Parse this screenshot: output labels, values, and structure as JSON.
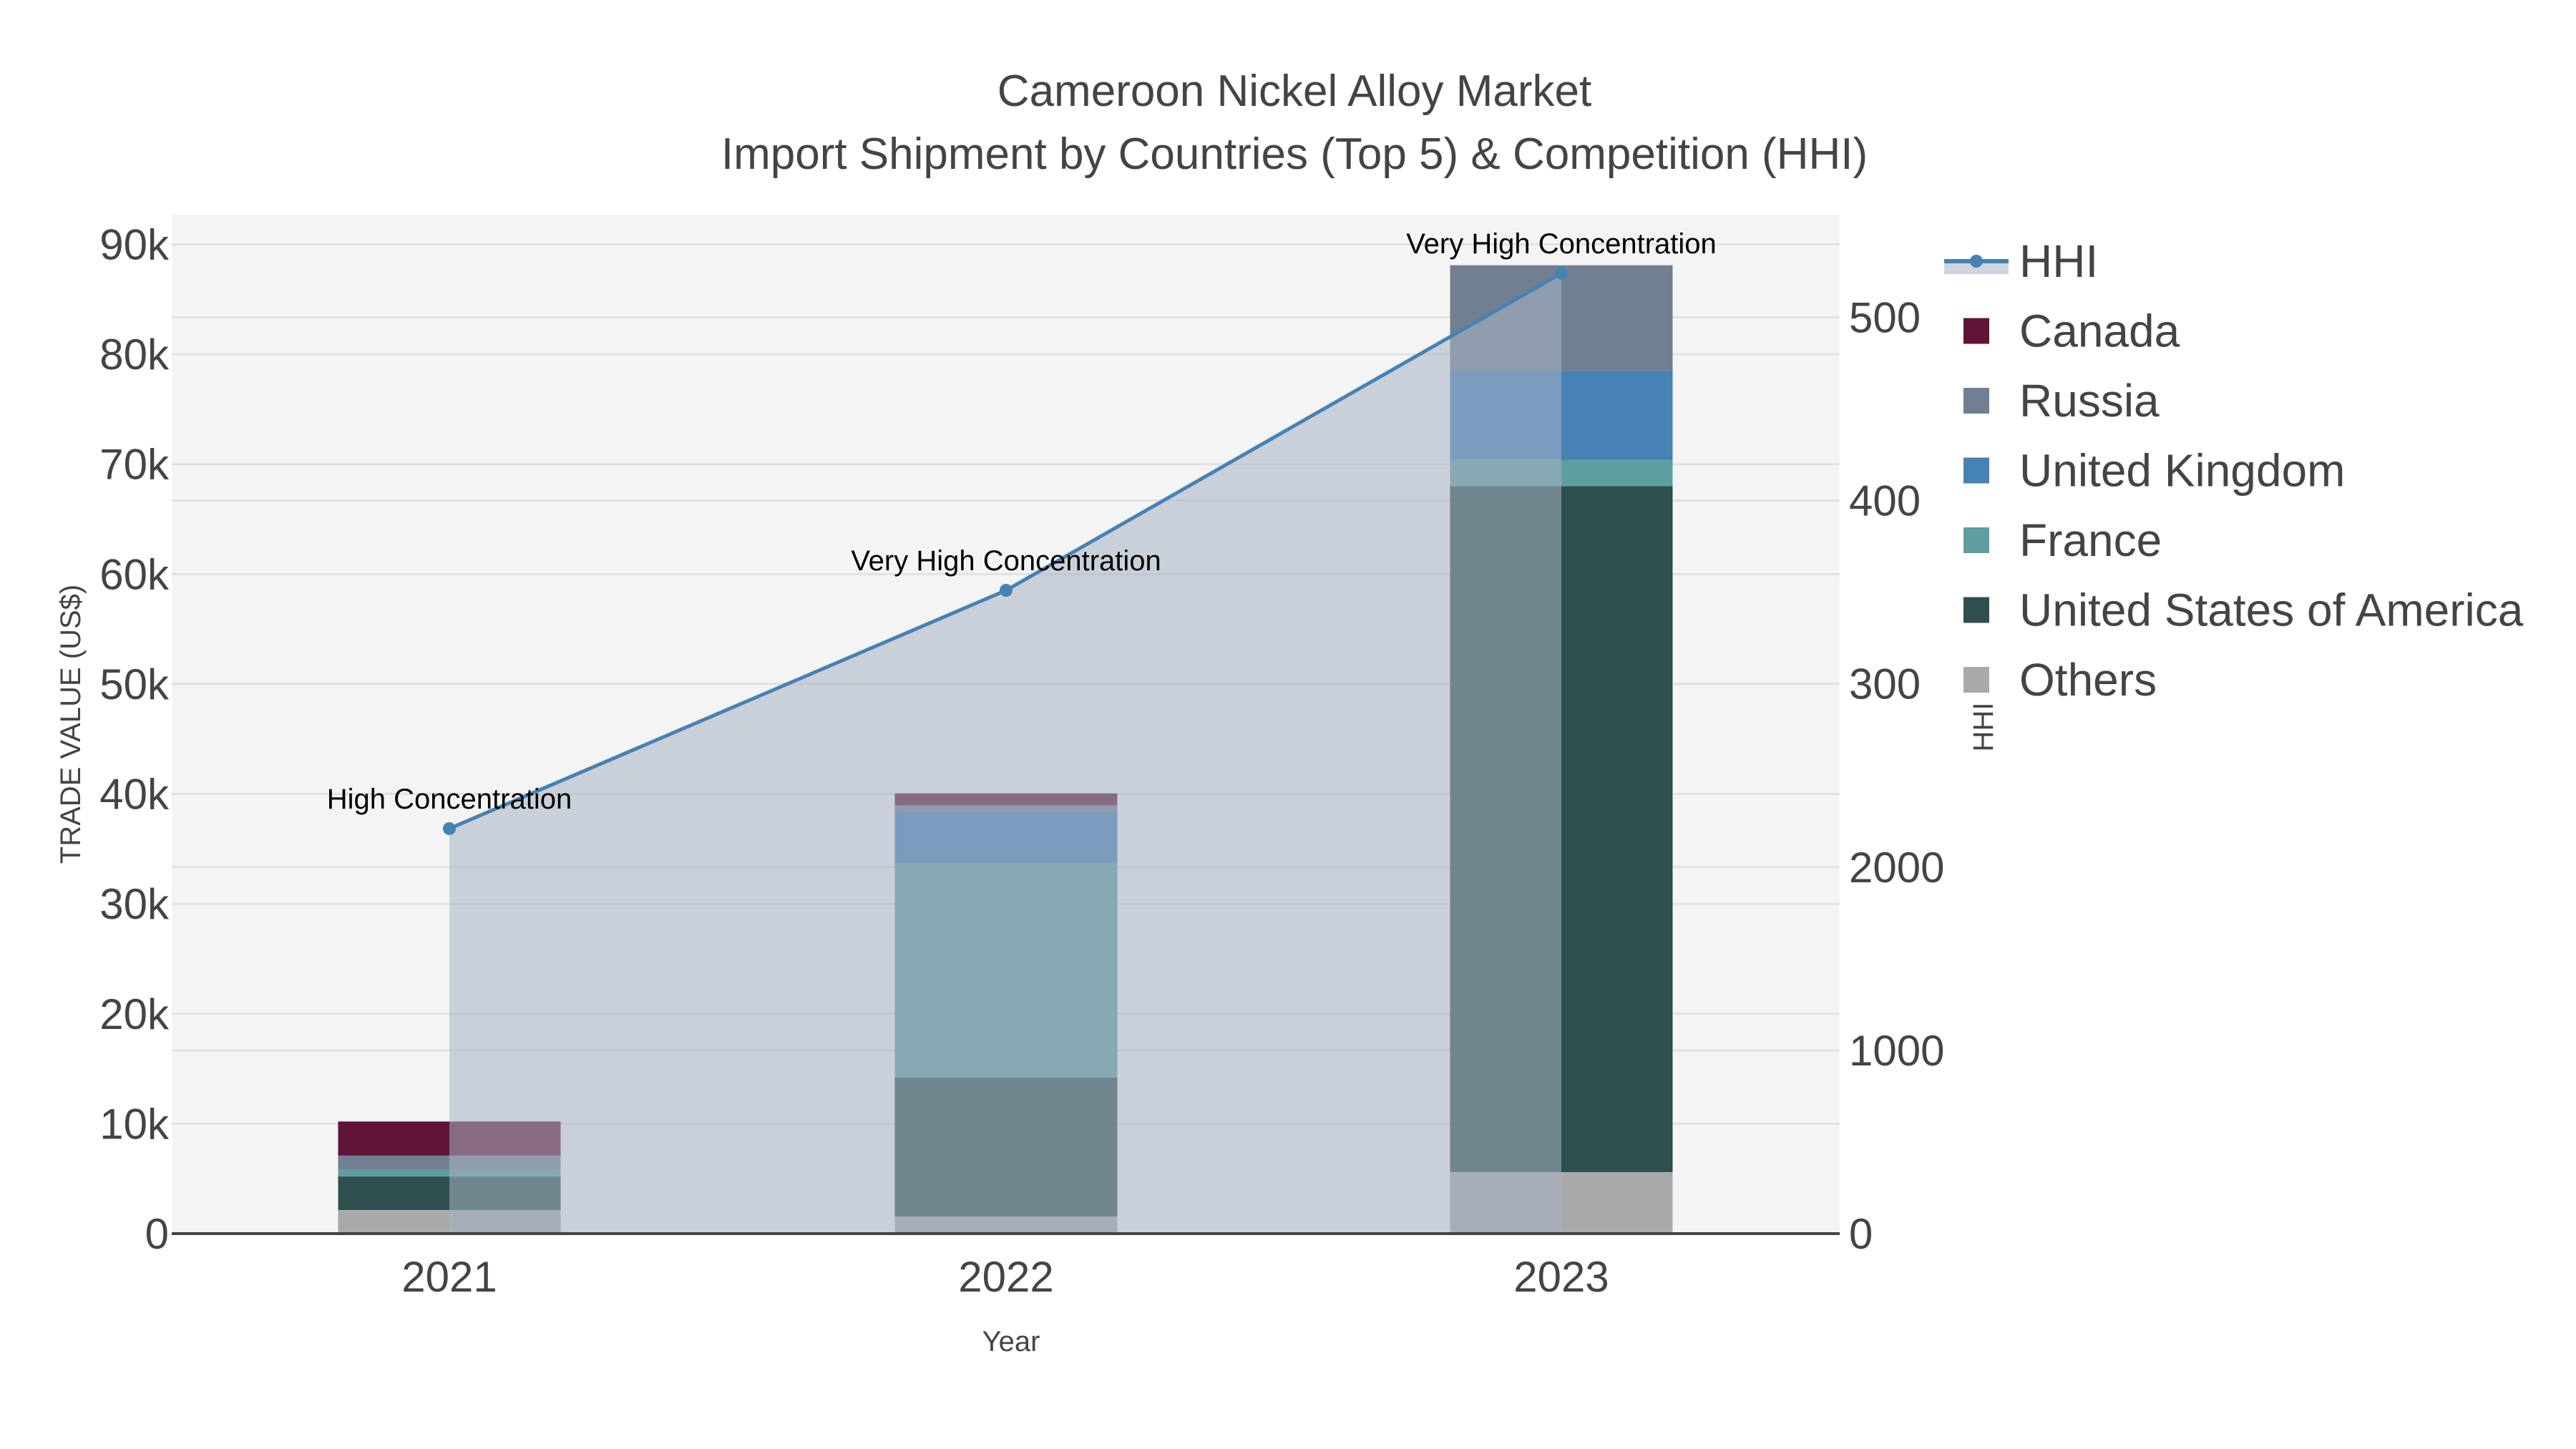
{
  "title": {
    "line1": "Cameroon Nickel Alloy Market",
    "line2": "Import Shipment by Countries (Top 5) & Competition (HHI)"
  },
  "axes": {
    "x_title": "Year",
    "y_left_title": "TRADE VALUE (US$)",
    "y_right_title": "HHI",
    "y_left_ticks": [
      "0",
      "10k",
      "20k",
      "30k",
      "40k",
      "50k",
      "60k",
      "70k",
      "80k",
      "90k"
    ],
    "y_right_ticks_displayed": [
      "0",
      "1000",
      "2000",
      "300",
      "400",
      "500"
    ]
  },
  "colors": {
    "plot_bg": "#f4f4f4",
    "grid": "#e2e2e2",
    "hhi_line": "#4682b4",
    "hhi_fill": "rgba(168,178,196,0.55)",
    "axis_line": "#444444"
  },
  "legend": {
    "items": [
      {
        "label": "HHI",
        "type": "line-area",
        "color": "#4682b4"
      },
      {
        "label": "Canada",
        "type": "bar",
        "color": "#601436"
      },
      {
        "label": "Russia",
        "type": "bar",
        "color": "#708090"
      },
      {
        "label": "United Kingdom",
        "type": "bar",
        "color": "#4682b4"
      },
      {
        "label": "France",
        "type": "bar",
        "color": "#5f9ea0"
      },
      {
        "label": "United States of America",
        "type": "bar",
        "color": "#2f4f4f"
      },
      {
        "label": "Others",
        "type": "bar",
        "color": "#a9a9a9"
      }
    ]
  },
  "chart_data": {
    "type": "bar",
    "subtype": "stacked bar with line/area overlay on secondary axis",
    "title": "Cameroon Nickel Alloy Market — Import Shipment by Countries (Top 5) & Competition (HHI)",
    "xlabel": "Year",
    "ylabel": "TRADE VALUE (US$)",
    "y2label": "HHI",
    "categories": [
      "2021",
      "2022",
      "2023"
    ],
    "ylim": [
      0,
      92700
    ],
    "y2lim": [
      0,
      5560
    ],
    "grid": true,
    "legend_position": "right",
    "series": [
      {
        "name": "Others",
        "color": "#a9a9a9",
        "values": [
          2150,
          1550,
          5600
        ]
      },
      {
        "name": "United States of America",
        "color": "#2f4f4f",
        "values": [
          3050,
          12650,
          62400
        ]
      },
      {
        "name": "France",
        "color": "#5f9ea0",
        "values": [
          600,
          19500,
          2400
        ]
      },
      {
        "name": "United Kingdom",
        "color": "#4682b4",
        "values": [
          0,
          4700,
          8100
        ]
      },
      {
        "name": "Russia",
        "color": "#708090",
        "values": [
          1300,
          550,
          9600
        ]
      },
      {
        "name": "Canada",
        "color": "#601436",
        "values": [
          3100,
          1100,
          0
        ]
      }
    ],
    "hhi": {
      "name": "HHI",
      "axis": "secondary",
      "color": "#4682b4",
      "values": [
        2210,
        3510,
        5240
      ],
      "annotations": [
        "High Concentration",
        "Very High Concentration",
        "Very High Concentration"
      ]
    }
  }
}
